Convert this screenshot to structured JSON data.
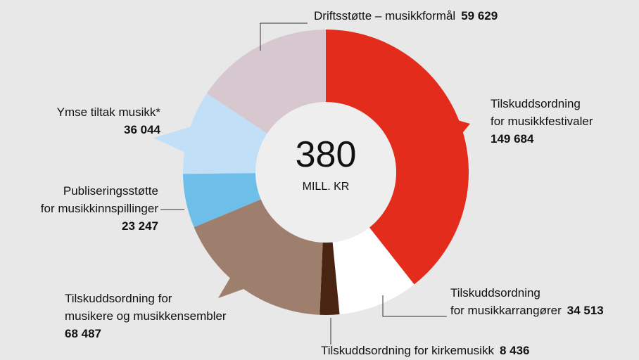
{
  "chart_data": {
    "type": "donut",
    "center_value": 380,
    "center_label": "MILL. KR",
    "categories": [
      "Tilskuddsordning\nfor musikkfestivaler",
      "Tilskuddsordning\nfor musikkarrangører",
      "Tilskuddsordning for kirkemusikk",
      "Tilskuddsordning for\nmusikere og musikkensembler",
      "Publiseringsstøtte\nfor musikkinnspillinger",
      "Ymse tiltak musikk*",
      "Driftsstøtte – musikkformål"
    ],
    "values": [
      149684,
      34513,
      8436,
      68487,
      23247,
      36044,
      59629
    ],
    "value_labels": [
      "149 684",
      "34 513",
      "8 436",
      "68 487",
      "23 247",
      "36 044",
      "59 629"
    ],
    "colors": [
      "#e42c1c",
      "#ffffff",
      "#4a2412",
      "#9e7f6e",
      "#6dbfea",
      "#c1e0f7",
      "#d7c8d0"
    ]
  }
}
